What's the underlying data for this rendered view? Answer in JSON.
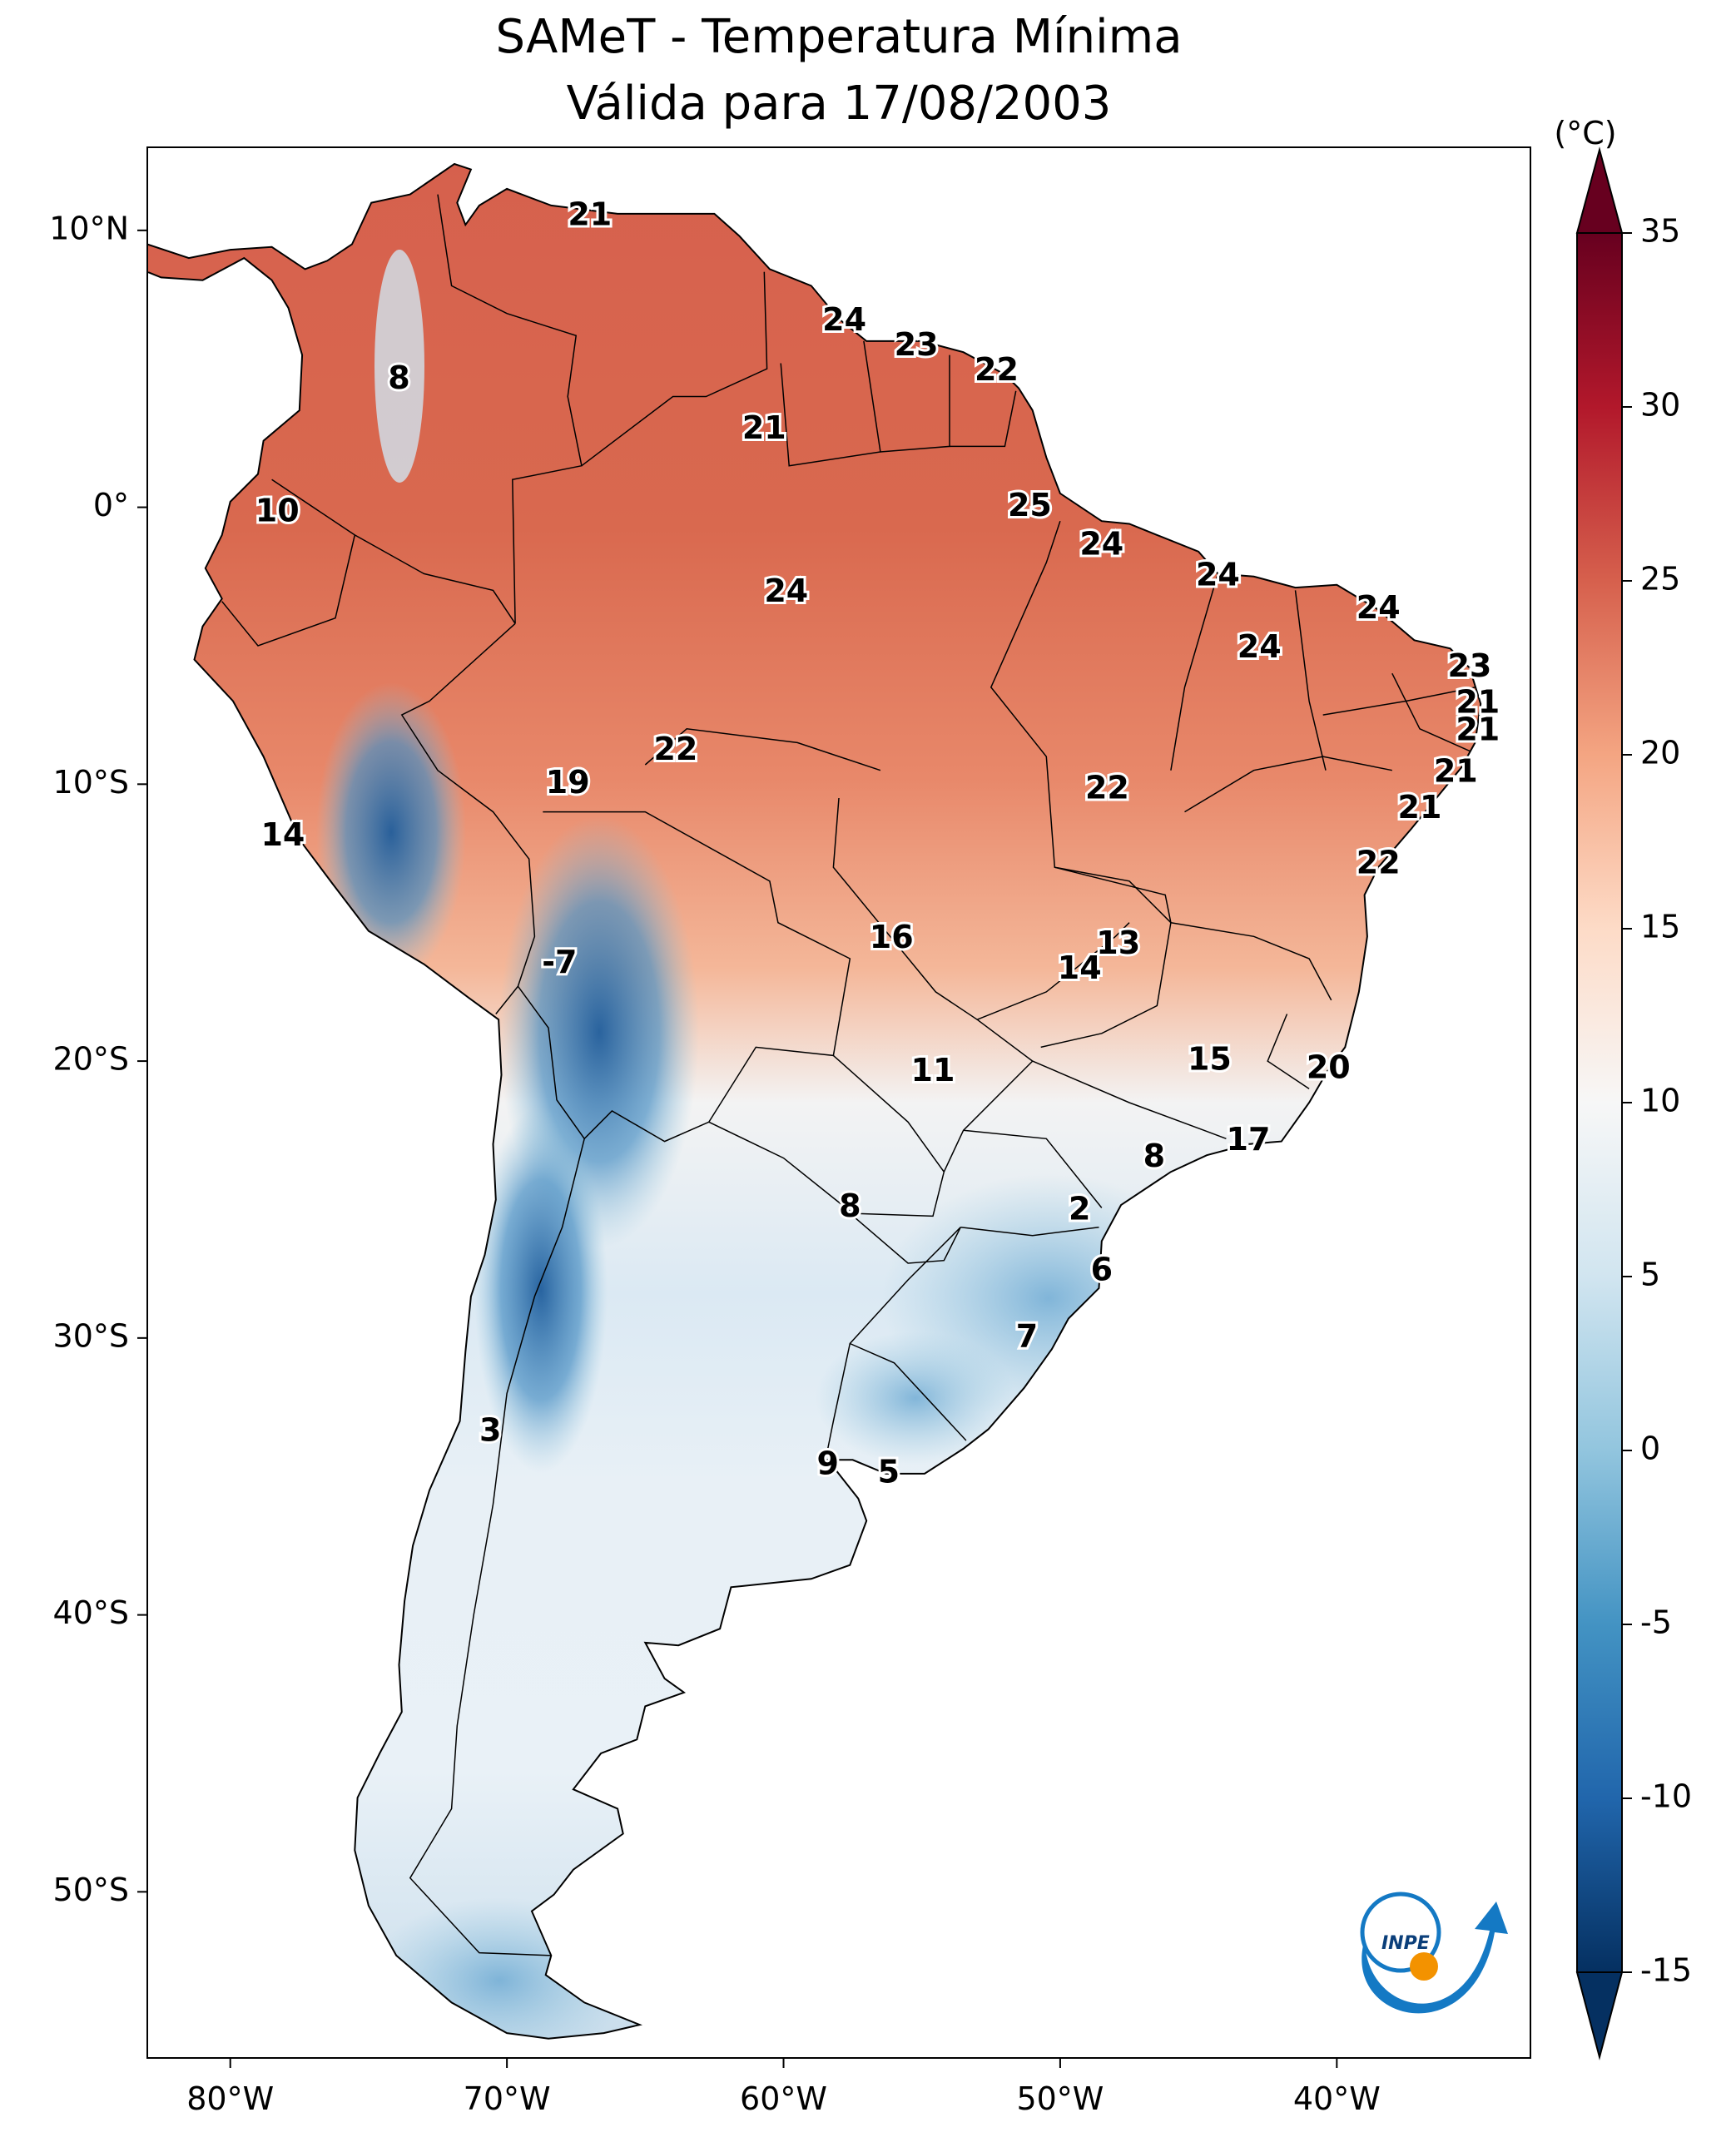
{
  "title": {
    "line1": "SAMeT - Temperatura Mínima",
    "line2": "Válida para 17/08/2003"
  },
  "map": {
    "lon_range": [
      -83,
      -33
    ],
    "lat_range": [
      -56,
      13
    ],
    "lat_ticks": [
      {
        "value": 10,
        "label": "10°N"
      },
      {
        "value": 0,
        "label": "0°"
      },
      {
        "value": -10,
        "label": "10°S"
      },
      {
        "value": -20,
        "label": "20°S"
      },
      {
        "value": -30,
        "label": "30°S"
      },
      {
        "value": -40,
        "label": "40°S"
      },
      {
        "value": -50,
        "label": "50°S"
      }
    ],
    "lon_ticks": [
      {
        "value": -80,
        "label": "80°W"
      },
      {
        "value": -70,
        "label": "70°W"
      },
      {
        "value": -60,
        "label": "60°W"
      },
      {
        "value": -50,
        "label": "50°W"
      },
      {
        "value": -40,
        "label": "40°W"
      }
    ],
    "ocean_color": "#ffffff",
    "border_color": "#000000"
  },
  "colorbar": {
    "unit": "(°C)",
    "min": -15,
    "max": 35,
    "ticks": [
      "35",
      "30",
      "25",
      "20",
      "15",
      "10",
      "5",
      "0",
      "-5",
      "-10",
      "-15"
    ],
    "colors": [
      "#053061",
      "#2166ac",
      "#4393c3",
      "#92c5de",
      "#d1e5f0",
      "#f7f7f7",
      "#fddbc7",
      "#f4a582",
      "#d6604d",
      "#b2182b",
      "#67001f"
    ]
  },
  "stations": [
    {
      "lon": -67.0,
      "lat": 10.5,
      "value": "21"
    },
    {
      "lon": -73.9,
      "lat": 4.6,
      "value": "8"
    },
    {
      "lon": -57.8,
      "lat": 6.7,
      "value": "24"
    },
    {
      "lon": -55.2,
      "lat": 5.8,
      "value": "23"
    },
    {
      "lon": -52.3,
      "lat": 4.9,
      "value": "22"
    },
    {
      "lon": -60.7,
      "lat": 2.8,
      "value": "21"
    },
    {
      "lon": -78.3,
      "lat": -0.2,
      "value": "10"
    },
    {
      "lon": -51.1,
      "lat": 0.0,
      "value": "25"
    },
    {
      "lon": -48.5,
      "lat": -1.4,
      "value": "24"
    },
    {
      "lon": -44.3,
      "lat": -2.5,
      "value": "24"
    },
    {
      "lon": -59.9,
      "lat": -3.1,
      "value": "24"
    },
    {
      "lon": -38.5,
      "lat": -3.7,
      "value": "24"
    },
    {
      "lon": -42.8,
      "lat": -5.1,
      "value": "24"
    },
    {
      "lon": -35.2,
      "lat": -5.8,
      "value": "23"
    },
    {
      "lon": -34.9,
      "lat": -7.1,
      "value": "21"
    },
    {
      "lon": -34.9,
      "lat": -8.1,
      "value": "21"
    },
    {
      "lon": -63.9,
      "lat": -8.8,
      "value": "22"
    },
    {
      "lon": -67.8,
      "lat": -10.0,
      "value": "19"
    },
    {
      "lon": -35.7,
      "lat": -9.6,
      "value": "21"
    },
    {
      "lon": -48.3,
      "lat": -10.2,
      "value": "22"
    },
    {
      "lon": -37.0,
      "lat": -10.9,
      "value": "21"
    },
    {
      "lon": -78.1,
      "lat": -11.9,
      "value": "14"
    },
    {
      "lon": -38.5,
      "lat": -12.9,
      "value": "22"
    },
    {
      "lon": -56.1,
      "lat": -15.6,
      "value": "16"
    },
    {
      "lon": -47.9,
      "lat": -15.8,
      "value": "13"
    },
    {
      "lon": -49.3,
      "lat": -16.7,
      "value": "14"
    },
    {
      "lon": -68.1,
      "lat": -16.5,
      "value": "-7"
    },
    {
      "lon": -54.6,
      "lat": -20.4,
      "value": "11"
    },
    {
      "lon": -44.6,
      "lat": -20.0,
      "value": "15"
    },
    {
      "lon": -40.3,
      "lat": -20.3,
      "value": "20"
    },
    {
      "lon": -43.2,
      "lat": -22.9,
      "value": "17"
    },
    {
      "lon": -46.6,
      "lat": -23.5,
      "value": "8"
    },
    {
      "lon": -57.6,
      "lat": -25.3,
      "value": "8"
    },
    {
      "lon": -49.3,
      "lat": -25.4,
      "value": "2"
    },
    {
      "lon": -48.5,
      "lat": -27.6,
      "value": "6"
    },
    {
      "lon": -51.2,
      "lat": -30.0,
      "value": "7"
    },
    {
      "lon": -70.6,
      "lat": -33.4,
      "value": "3"
    },
    {
      "lon": -58.4,
      "lat": -34.6,
      "value": "9"
    },
    {
      "lon": -56.2,
      "lat": -34.9,
      "value": "5"
    }
  ],
  "logo": {
    "text": "INPE"
  }
}
